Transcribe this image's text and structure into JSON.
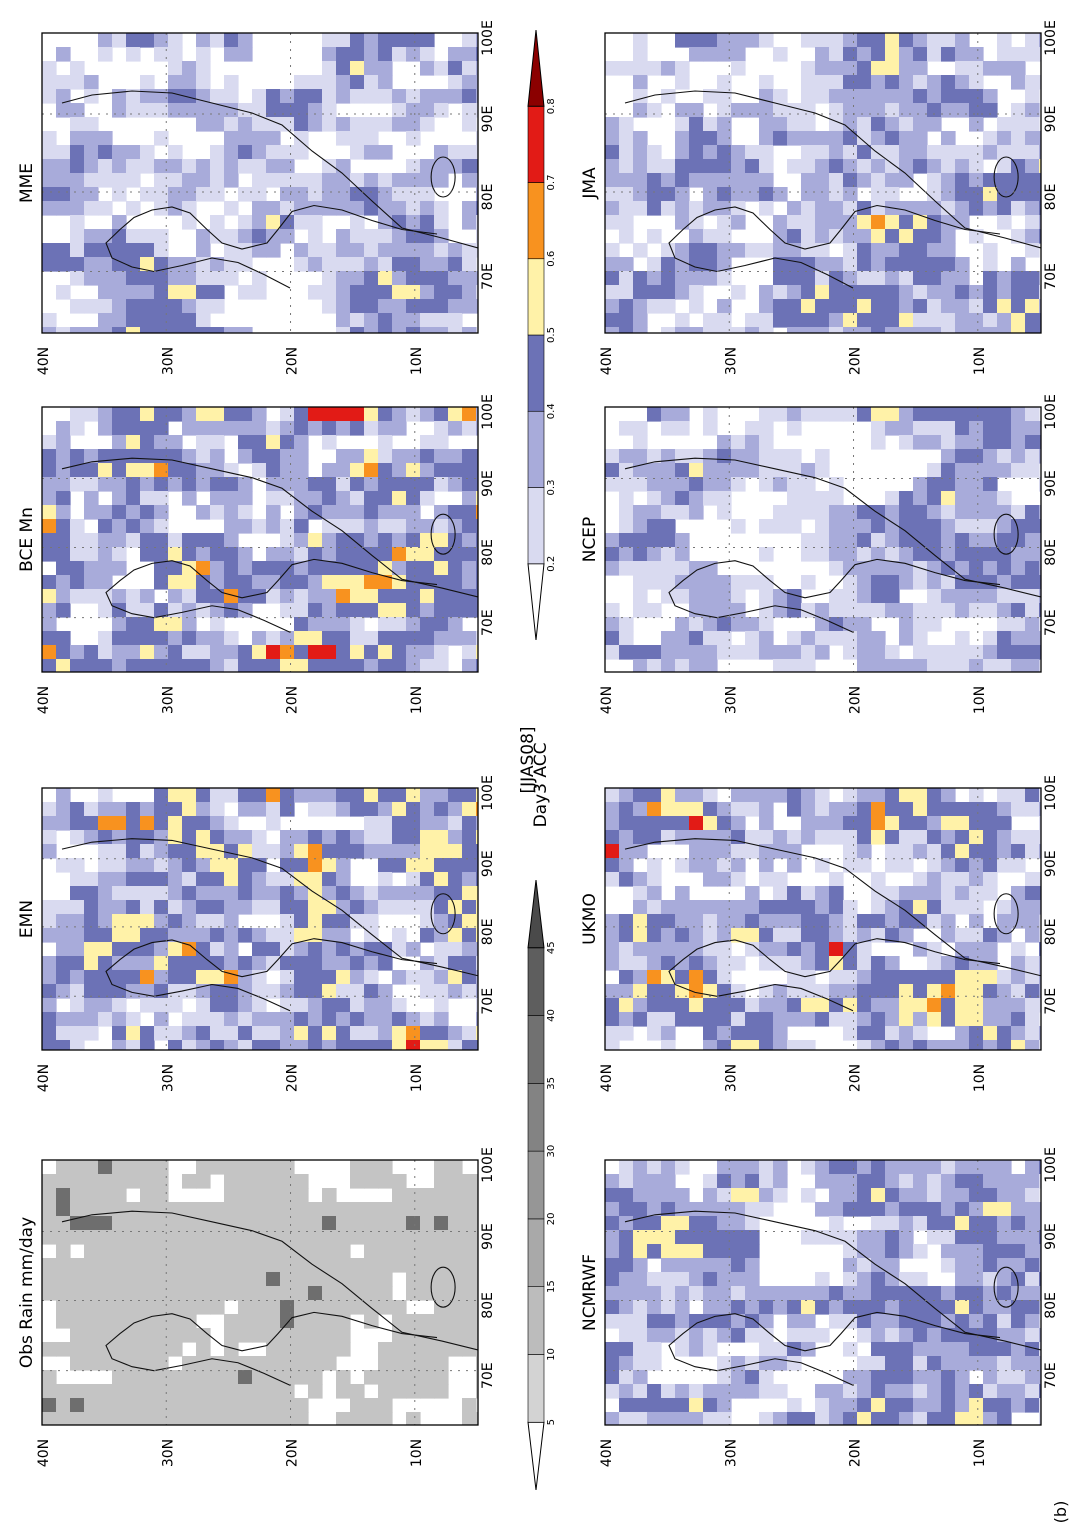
{
  "figure": {
    "header_season": "[JJAS08]",
    "header_metric": "Day3 ACC",
    "panel_label": "(b)",
    "panel_titles": {
      "obs": "Obs Rain mm/day",
      "emn": "EMN",
      "bce": "BCE Mn",
      "mme": "MME",
      "ncmrwf": "NCMRWF",
      "ukmo": "UKMO",
      "ncep": "NCEP",
      "jma": "JMA"
    },
    "lat_labels": [
      "40N",
      "30N",
      "20N",
      "10N"
    ],
    "lon_labels": [
      "70E",
      "80E",
      "90E",
      "100E"
    ]
  },
  "colorbars": {
    "acc": {
      "labels": [
        "0.2",
        "0.3",
        "0.4",
        "0.5",
        "0.6",
        "0.7",
        "0.8"
      ],
      "colors": [
        "#d9daf0",
        "#a8abda",
        "#6c72b6",
        "#fff2a8",
        "#f8921f",
        "#e21b16",
        "#8b0000"
      ]
    },
    "rain": {
      "labels": [
        "5",
        "10",
        "15",
        "20",
        "30",
        "35",
        "40",
        "45"
      ],
      "colors": [
        "#d3d3d3",
        "#bcbcbc",
        "#a9a9a9",
        "#969696",
        "#838383",
        "#717171",
        "#5e5e5e",
        "#4a4a4a"
      ]
    }
  },
  "colors": {
    "acc_low": "#d9daf0",
    "acc_mid": "#a8abda",
    "acc_high": "#6c72b6",
    "acc_yellow": "#fff2a8",
    "acc_orange": "#f8921f",
    "acc_red": "#e21b16",
    "rain_light": "#c4c4c4",
    "rain_dark": "#6e6e6e"
  }
}
